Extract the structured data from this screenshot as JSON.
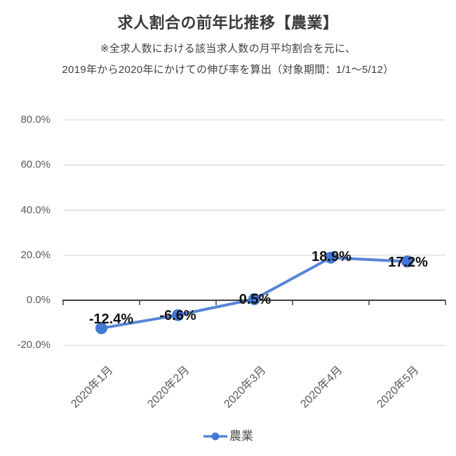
{
  "header": {
    "title": "求人割合の前年比推移【農業】",
    "subtitle_line1": "※全求人数における該当求人数の月平均割合を元に、",
    "subtitle_line2": "2019年から2020年にかけての伸び率を算出（対象期間：1/1〜5/12）"
  },
  "chart_data": {
    "type": "line",
    "title": "求人割合の前年比推移【農業】",
    "categories": [
      "2020年1月",
      "2020年2月",
      "2020年3月",
      "2020年4月",
      "2020年5月"
    ],
    "series": [
      {
        "name": "農業",
        "values": [
          -12.4,
          -6.6,
          0.5,
          18.9,
          17.2
        ],
        "data_labels": [
          "-12.4%",
          "-6.6%",
          "0.5%",
          "18.9%",
          "17.2%"
        ]
      }
    ],
    "y_axis": {
      "min": -20,
      "max": 80,
      "ticks": [
        {
          "value": 80,
          "label": "80.0%"
        },
        {
          "value": 60,
          "label": "60.0%"
        },
        {
          "value": 40,
          "label": "40.0%"
        },
        {
          "value": 20,
          "label": "20.0%"
        },
        {
          "value": 0,
          "label": "0.0%"
        },
        {
          "value": -20,
          "label": "-20.0%"
        }
      ]
    },
    "grid": true,
    "legend_position": "bottom",
    "colors": {
      "line": "#5585D8",
      "marker": "#4478D6",
      "grid": "#D9D9D9",
      "axis": "#404040",
      "data_label": "#111111",
      "tick_label": "#595959",
      "legend_text": "#4D4D4D"
    }
  }
}
